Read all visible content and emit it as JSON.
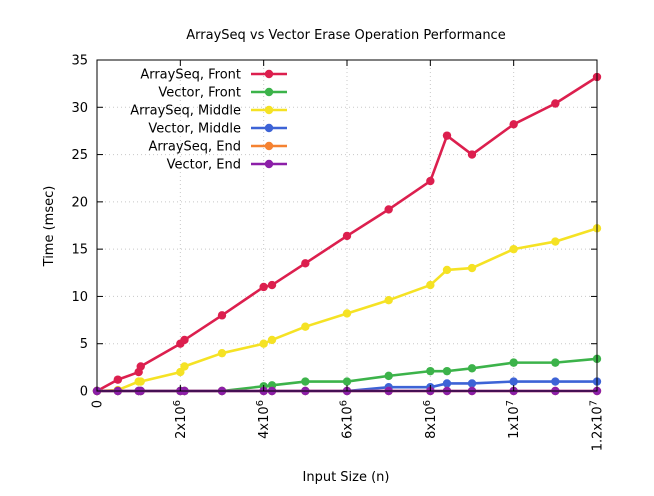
{
  "chart_data": {
    "type": "line",
    "title": "ArraySeq vs Vector Erase Operation Performance",
    "xlabel": "Input Size (n)",
    "ylabel": "Time (msec)",
    "xlim": [
      0,
      12000000
    ],
    "ylim": [
      0,
      35
    ],
    "grid": true,
    "legend_position": "top-left",
    "x_ticks": [
      {
        "value": 0,
        "label": "0"
      },
      {
        "value": 2000000,
        "base": "2x10",
        "exp": "6"
      },
      {
        "value": 4000000,
        "base": "4x10",
        "exp": "6"
      },
      {
        "value": 6000000,
        "base": "6x10",
        "exp": "6"
      },
      {
        "value": 8000000,
        "base": "8x10",
        "exp": "6"
      },
      {
        "value": 10000000,
        "base": "1x10",
        "exp": "7"
      },
      {
        "value": 12000000,
        "base": "1.2x10",
        "exp": "7"
      }
    ],
    "y_ticks": [
      0,
      5,
      10,
      15,
      20,
      25,
      30,
      35
    ],
    "series": [
      {
        "name": "ArraySeq, Front",
        "color": "#dc1f4e",
        "x": [
          0,
          500000,
          1000000,
          1050000,
          2000000,
          2100000,
          3000000,
          4000000,
          4200000,
          5000000,
          6000000,
          7000000,
          8000000,
          8400000,
          9000000,
          10000000,
          11000000,
          12000000
        ],
        "y": [
          0,
          1.2,
          2.0,
          2.6,
          5.0,
          5.4,
          8.0,
          11.0,
          11.2,
          13.5,
          16.4,
          19.2,
          22.2,
          27.0,
          25.0,
          28.2,
          30.4,
          33.2
        ]
      },
      {
        "name": "Vector, Front",
        "color": "#3cb34a",
        "x": [
          0,
          500000,
          1000000,
          1050000,
          2000000,
          2100000,
          3000000,
          4000000,
          4200000,
          5000000,
          6000000,
          7000000,
          8000000,
          8400000,
          9000000,
          10000000,
          11000000,
          12000000
        ],
        "y": [
          0,
          0,
          0,
          0,
          0,
          0,
          0,
          0.5,
          0.6,
          1.0,
          1.0,
          1.6,
          2.1,
          2.1,
          2.4,
          3.0,
          3.0,
          3.4
        ]
      },
      {
        "name": "ArraySeq, Middle",
        "color": "#f5e224",
        "x": [
          0,
          500000,
          1000000,
          1050000,
          2000000,
          2100000,
          3000000,
          4000000,
          4200000,
          5000000,
          6000000,
          7000000,
          8000000,
          8400000,
          9000000,
          10000000,
          11000000,
          12000000
        ],
        "y": [
          0,
          0.1,
          1.0,
          1.0,
          2.0,
          2.6,
          4.0,
          5.0,
          5.4,
          6.8,
          8.2,
          9.6,
          11.2,
          12.8,
          13.0,
          15.0,
          15.8,
          17.2
        ]
      },
      {
        "name": "Vector, Middle",
        "color": "#3d63d6",
        "x": [
          0,
          500000,
          1000000,
          1050000,
          2000000,
          2100000,
          3000000,
          4000000,
          4200000,
          5000000,
          6000000,
          7000000,
          8000000,
          8400000,
          9000000,
          10000000,
          11000000,
          12000000
        ],
        "y": [
          0,
          0,
          0,
          0,
          0,
          0,
          0,
          0,
          0,
          0,
          0,
          0.4,
          0.4,
          0.8,
          0.8,
          1.0,
          1.0,
          1.0
        ]
      },
      {
        "name": "ArraySeq, End",
        "color": "#f58231",
        "x": [
          0,
          500000,
          1000000,
          1050000,
          2000000,
          2100000,
          3000000,
          4000000,
          4200000,
          5000000,
          6000000,
          7000000,
          8000000,
          8400000,
          9000000,
          10000000,
          11000000,
          12000000
        ],
        "y": [
          0,
          0,
          0,
          0,
          0,
          0,
          0,
          0,
          0,
          0,
          0,
          0,
          0,
          0,
          0,
          0,
          0,
          0
        ]
      },
      {
        "name": "Vector, End",
        "color": "#8c1fa8",
        "x": [
          0,
          500000,
          1000000,
          1050000,
          2000000,
          2100000,
          3000000,
          4000000,
          4200000,
          5000000,
          6000000,
          7000000,
          8000000,
          8400000,
          9000000,
          10000000,
          11000000,
          12000000
        ],
        "y": [
          0,
          0,
          0,
          0,
          0,
          0,
          0,
          0,
          0,
          0,
          0,
          0,
          0,
          0,
          0,
          0,
          0,
          0
        ]
      }
    ]
  }
}
